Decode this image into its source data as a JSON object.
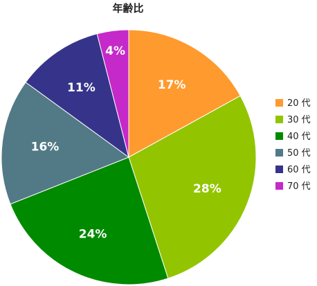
{
  "chart_data": {
    "type": "pie",
    "title": "年齢比",
    "categories": [
      "20 代",
      "30 代",
      "40 代",
      "50 代",
      "60 代",
      "70 代"
    ],
    "values": [
      17,
      28,
      24,
      16,
      11,
      4
    ],
    "labels": [
      "17%",
      "28%",
      "24%",
      "16%",
      "11%",
      "4%"
    ],
    "colors": [
      "#ff9a2e",
      "#92c500",
      "#008a00",
      "#527a86",
      "#36348a",
      "#c529c9"
    ],
    "legend_position": "right"
  }
}
